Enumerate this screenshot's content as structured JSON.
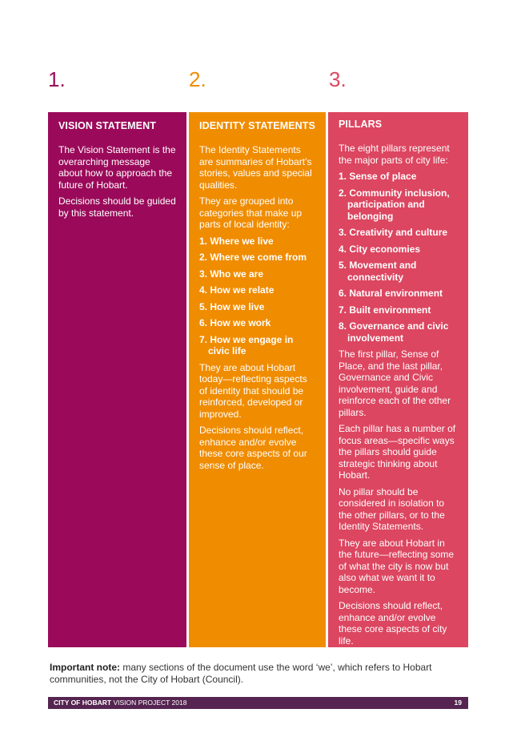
{
  "colors": {
    "vision": "#9b0a5a",
    "identity": "#f08c00",
    "pillars": "#dc4660",
    "footer": "#552450"
  },
  "columns": [
    {
      "number": "1.",
      "title": "VISION STATEMENT",
      "intro": [
        "The Vision Statement is the overarching message about how to approach the future of Hobart.",
        "Decisions should be guided by this statement."
      ],
      "items": [],
      "outro": []
    },
    {
      "number": "2.",
      "title": "IDENTITY STATEMENTS",
      "intro": [
        "The Identity Statements are summaries of Hobart’s stories, values and special qualities.",
        "They are grouped into categories that make up parts of local identity:"
      ],
      "items": [
        "1. Where we live",
        "2. Where we come from",
        "3. Who we are",
        "4. How we relate",
        "5. How we live",
        "6. How we work",
        "7. How we engage in civic life"
      ],
      "outro": [
        "They are about Hobart today—reflecting aspects of identity that should be reinforced, developed or improved.",
        "Decisions should reflect, enhance and/or evolve these core aspects of our sense of place."
      ]
    },
    {
      "number": "3.",
      "title": "PILLARS",
      "intro": [
        "The eight pillars represent the major parts of city life:"
      ],
      "items": [
        "1. Sense of place",
        "2. Community inclusion, participation and belonging",
        "3. Creativity and culture",
        "4. City economies",
        "5. Movement and connectivity",
        "6. Natural environment",
        "7. Built environment",
        "8. Governance and civic involvement"
      ],
      "outro": [
        "The first pillar, Sense of Place, and the last pillar, Governance and Civic involvement, guide and reinforce each of the other pillars.",
        "Each pillar has a number of focus areas—specific ways the pillars should guide strategic thinking about Hobart.",
        "No pillar should be considered in isolation to the other pillars, or to the Identity Statements.",
        "They are about Hobart in the future—reflecting some of what the city is now but also what we want it to become.",
        "Decisions should reflect, enhance and/or evolve these core aspects of city life."
      ]
    }
  ],
  "note": {
    "label": "Important note:",
    "text": " many sections of the document use the word ‘we’, which refers to Hobart communities, not the City of Hobart (Council)."
  },
  "footer": {
    "brand": "CITY OF HOBART",
    "title": " VISION PROJECT 2018",
    "page": "19"
  }
}
